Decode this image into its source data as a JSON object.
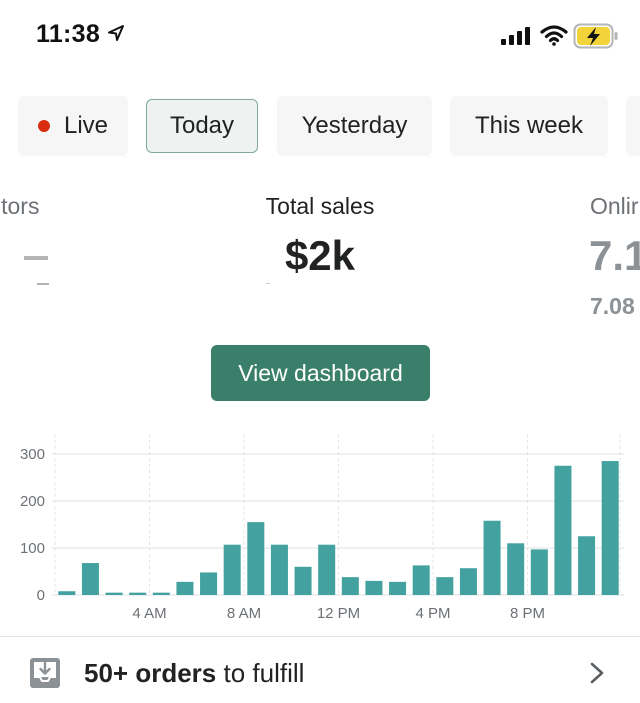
{
  "status_bar": {
    "time": "11:38",
    "icons": [
      "location-arrow-icon",
      "signal-icon",
      "wifi-icon",
      "battery-charging-icon"
    ]
  },
  "tabs": [
    {
      "label": "Live",
      "selected": false,
      "indicator_color": "#d72c0d"
    },
    {
      "label": "Today",
      "selected": true
    },
    {
      "label": "Yesterday",
      "selected": false
    },
    {
      "label": "This week",
      "selected": false
    }
  ],
  "metrics": {
    "left": {
      "label": "itors",
      "value": "—",
      "sub": "—"
    },
    "center": {
      "label": "Total sales",
      "value": "$2k"
    },
    "right": {
      "label": "Onlir",
      "value": "7.1",
      "sub": "7.08"
    }
  },
  "dashboard_button": {
    "label": "View dashboard",
    "color": "#3a7f69"
  },
  "chart_data": {
    "type": "bar",
    "color": "#43a19f",
    "ylim": [
      0,
      300
    ],
    "y_ticks": [
      "300",
      "200",
      "100",
      "0"
    ],
    "x_tick_labels": [
      {
        "label": "4 AM",
        "hour": 4
      },
      {
        "label": "8 AM",
        "hour": 8
      },
      {
        "label": "12 PM",
        "hour": 12
      },
      {
        "label": "4 PM",
        "hour": 16
      },
      {
        "label": "8 PM",
        "hour": 20
      }
    ],
    "categories": [
      0,
      1,
      2,
      3,
      4,
      5,
      6,
      7,
      8,
      9,
      10,
      11,
      12,
      13,
      14,
      15,
      16,
      17,
      18,
      19,
      20,
      21,
      22,
      23
    ],
    "values": [
      8,
      68,
      5,
      5,
      5,
      28,
      48,
      107,
      155,
      107,
      60,
      107,
      38,
      30,
      28,
      63,
      38,
      57,
      158,
      110,
      97,
      275,
      125,
      285
    ],
    "grid": true
  },
  "fulfill": {
    "count": "50+ orders",
    "suffix": " to fulfill"
  }
}
